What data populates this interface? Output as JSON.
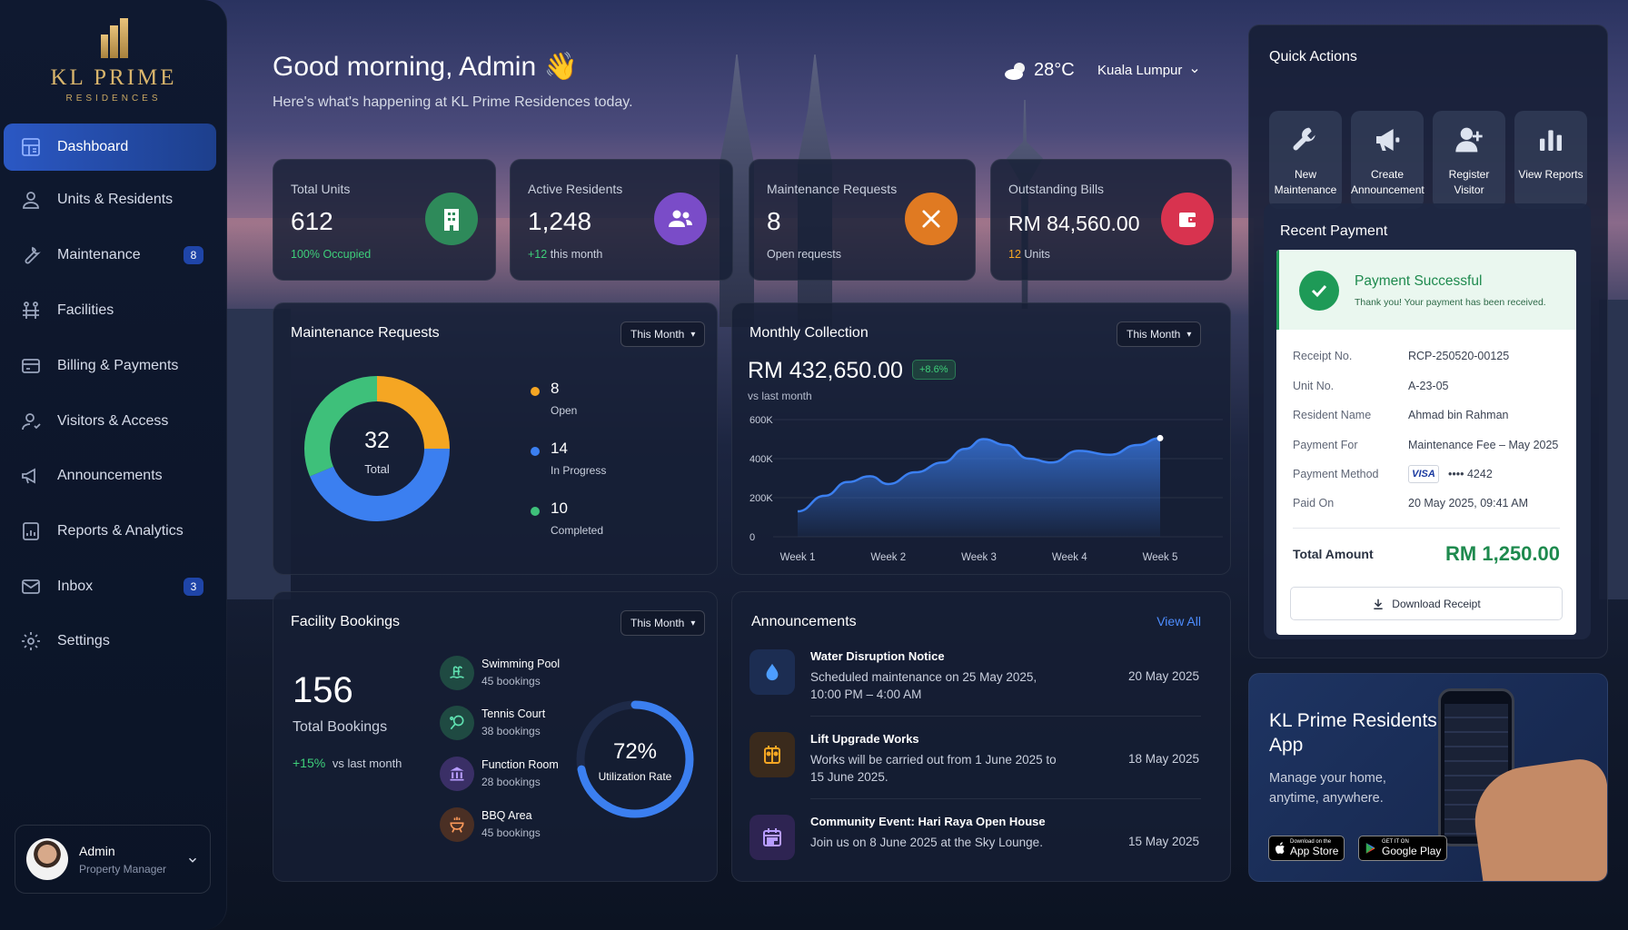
{
  "brand": {
    "title": "KL PRIME",
    "subtitle": "RESIDENCES"
  },
  "sidebar": {
    "items": [
      {
        "label": "Dashboard",
        "icon": "dashboard-icon"
      },
      {
        "label": "Units & Residents",
        "icon": "user-icon"
      },
      {
        "label": "Maintenance",
        "icon": "wrench-icon",
        "badge": "8"
      },
      {
        "label": "Facilities",
        "icon": "facilities-icon"
      },
      {
        "label": "Billing & Payments",
        "icon": "billing-icon"
      },
      {
        "label": "Visitors & Access",
        "icon": "visitor-icon"
      },
      {
        "label": "Announcements",
        "icon": "megaphone-icon"
      },
      {
        "label": "Reports & Analytics",
        "icon": "report-icon"
      },
      {
        "label": "Inbox",
        "icon": "mail-icon",
        "badge": "3"
      },
      {
        "label": "Settings",
        "icon": "gear-icon"
      }
    ],
    "user": {
      "name": "Admin",
      "role": "Property Manager"
    }
  },
  "header": {
    "greeting": "Good morning, Admin 👋",
    "subtitle": "Here's what's happening at KL Prime Residences today.",
    "temperature": "28°C",
    "location": "Kuala Lumpur"
  },
  "stats": [
    {
      "label": "Total Units",
      "value": "612",
      "sub": "100% Occupied",
      "sub_color": "#3ecf7a",
      "icon_color": "#2e8a5a"
    },
    {
      "label": "Active Residents",
      "value": "1,248",
      "sub_highlight": "+12",
      "sub": " this month",
      "icon_color": "#7a4cc8"
    },
    {
      "label": "Maintenance Requests",
      "value": "8",
      "sub": "Open requests",
      "icon_color": "#e07a22"
    },
    {
      "label": "Outstanding Bills",
      "value": "RM 84,560.00",
      "sub_highlight": "12",
      "sub": " Units",
      "icon_color": "#d8334f"
    }
  ],
  "maintenance": {
    "title": "Maintenance Requests",
    "filter": "This Month",
    "total": "32",
    "total_label": "Total",
    "legend": [
      {
        "value": "8",
        "label": "Open",
        "color": "#f5a623"
      },
      {
        "value": "14",
        "label": "In Progress",
        "color": "#3b7ff0"
      },
      {
        "value": "10",
        "label": "Completed",
        "color": "#3ec07a"
      }
    ]
  },
  "collection": {
    "title": "Monthly Collection",
    "filter": "This Month",
    "amount": "RM 432,650.00",
    "change": "+8.6%",
    "compare": "vs last month"
  },
  "chart_data": {
    "type": "area",
    "title": "Monthly Collection",
    "x": [
      1,
      1.3,
      1.55,
      1.8,
      2.0,
      2.3,
      2.6,
      2.85,
      3.05,
      3.3,
      3.55,
      3.8,
      4.1,
      4.45,
      4.75,
      5.0
    ],
    "categories": [
      "Week 1",
      "Week 2",
      "Week 3",
      "Week 4",
      "Week 5"
    ],
    "values": [
      130000,
      210000,
      280000,
      310000,
      270000,
      330000,
      380000,
      450000,
      500000,
      470000,
      400000,
      380000,
      440000,
      420000,
      470000,
      505000
    ],
    "yticks": [
      "0",
      "200K",
      "400K",
      "600K"
    ],
    "ylim": [
      0,
      600000
    ],
    "color": "#3b7ff0"
  },
  "facility": {
    "title": "Facility Bookings",
    "filter": "This Month",
    "total": "156",
    "total_label": "Total Bookings",
    "change": "+15%",
    "change_label": "vs last month",
    "items": [
      {
        "name": "Swimming Pool",
        "count": "45 bookings",
        "color": "#2a6a5a",
        "icon": "pool-icon"
      },
      {
        "name": "Tennis Court",
        "count": "38 bookings",
        "color": "#2a6a5a",
        "icon": "tennis-icon"
      },
      {
        "name": "Function Room",
        "count": "28 bookings",
        "color": "#4a3a7a",
        "icon": "function-room-icon"
      },
      {
        "name": "BBQ Area",
        "count": "45 bookings",
        "color": "#5a3a2a",
        "icon": "bbq-icon"
      }
    ],
    "utilization": "72%",
    "utilization_value": 0.72,
    "utilization_label": "Utilization Rate"
  },
  "announcements": {
    "title": "Announcements",
    "view_all": "View All",
    "items": [
      {
        "title": "Water Disruption Notice",
        "body": "Scheduled maintenance on 25 May 2025, 10:00 PM – 4:00 AM",
        "date": "20 May 2025",
        "icon": "water-drop-icon"
      },
      {
        "title": "Lift Upgrade Works",
        "body": "Works will be carried out from 1 June 2025 to 15 June 2025.",
        "date": "18 May 2025",
        "icon": "lift-icon"
      },
      {
        "title": "Community Event: Hari Raya Open House",
        "body": "Join us on 8 June 2025 at the Sky Lounge.",
        "date": "15 May 2025",
        "icon": "calendar-icon"
      }
    ]
  },
  "quick_actions": {
    "title": "Quick Actions",
    "items": [
      {
        "label": "New Maintenance",
        "icon": "wrench-icon"
      },
      {
        "label": "Create Announcement",
        "icon": "megaphone-icon"
      },
      {
        "label": "Register Visitor",
        "icon": "add-user-icon"
      },
      {
        "label": "View Reports",
        "icon": "bar-chart-icon"
      }
    ]
  },
  "payment": {
    "title": "Recent Payment",
    "status": "Payment Successful",
    "status_sub": "Thank you! Your payment has been received.",
    "rows": [
      {
        "key": "Receipt No.",
        "value": "RCP-250520-00125"
      },
      {
        "key": "Unit No.",
        "value": "A-23-05"
      },
      {
        "key": "Resident Name",
        "value": "Ahmad bin Rahman"
      },
      {
        "key": "Payment For",
        "value": "Maintenance Fee – May 2025"
      },
      {
        "key": "Payment Method",
        "value": "•••• 4242",
        "card": "VISA"
      },
      {
        "key": "Paid On",
        "value": "20 May 2025, 09:41 AM"
      }
    ],
    "total_label": "Total Amount",
    "total_value": "RM 1,250.00",
    "download": "Download Receipt"
  },
  "app_promo": {
    "title": "KL Prime Residents App",
    "subtitle": "Manage your home, anytime, anywhere.",
    "app_store_small": "Download on the",
    "app_store": "App Store",
    "google_small": "GET IT ON",
    "google": "Google Play"
  }
}
